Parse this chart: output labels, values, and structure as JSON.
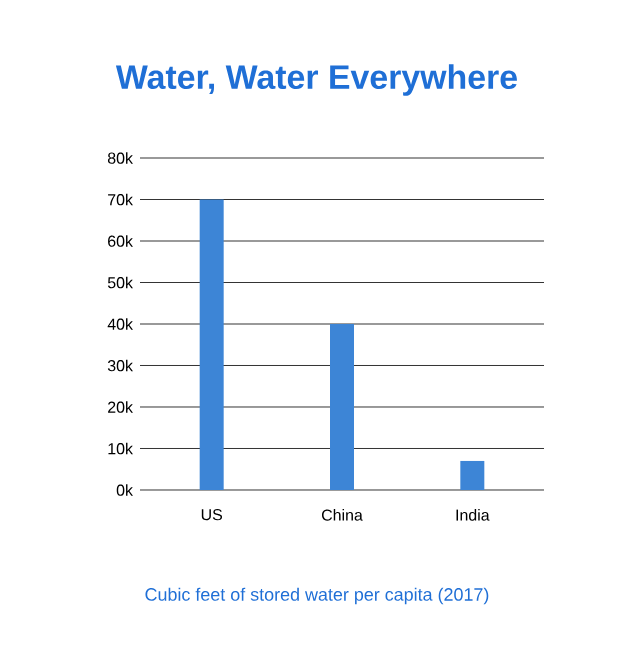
{
  "chart_data": {
    "type": "bar",
    "title": "Water, Water Everywhere",
    "categories": [
      "US",
      "China",
      "India"
    ],
    "values": [
      70000,
      40000,
      7000
    ],
    "color": "#3d85d6",
    "ylim": [
      0,
      80000
    ],
    "yticks": [
      {
        "value": 0,
        "label": "0k"
      },
      {
        "value": 10000,
        "label": "10k"
      },
      {
        "value": 20000,
        "label": "20k"
      },
      {
        "value": 30000,
        "label": "30k"
      },
      {
        "value": 40000,
        "label": "40k"
      },
      {
        "value": 50000,
        "label": "50k"
      },
      {
        "value": 60000,
        "label": "60k"
      },
      {
        "value": 70000,
        "label": "70k"
      },
      {
        "value": 80000,
        "label": "80k"
      }
    ],
    "grid": "y",
    "annotations": [
      "Cubic feet of stored water per capita (2017)"
    ]
  }
}
